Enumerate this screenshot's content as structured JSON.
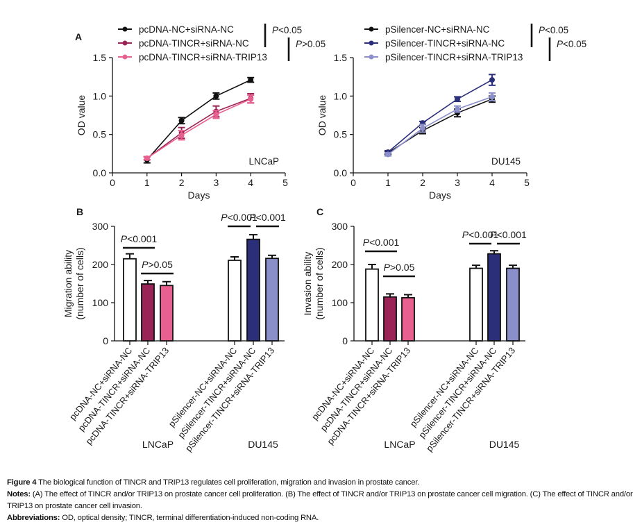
{
  "chart_data": [
    {
      "type": "line",
      "panel": "A",
      "title": "",
      "annotation": "LNCaP",
      "xlabel": "Days",
      "ylabel": "OD value",
      "xlim": [
        0,
        5
      ],
      "ylim": [
        0,
        1.5
      ],
      "xticks": [
        "0",
        "1",
        "2",
        "3",
        "4",
        "5"
      ],
      "yticks": [
        "0.0",
        "0.5",
        "1.0",
        "1.5"
      ],
      "x": [
        1,
        2,
        3,
        4
      ],
      "series": [
        {
          "name": "pcDNA-NC+siRNA-NC",
          "color": "#111111",
          "values": [
            0.17,
            0.68,
            1.0,
            1.21
          ],
          "errors": [
            0.04,
            0.04,
            0.04,
            0.03
          ]
        },
        {
          "name": "pcDNA-TINCR+siRNA-NC",
          "color": "#9b2457",
          "values": [
            0.19,
            0.52,
            0.8,
            0.97
          ],
          "errors": [
            0.02,
            0.07,
            0.07,
            0.06
          ]
        },
        {
          "name": "pcDNA-TINCR+siRNA-TRIP13",
          "color": "#e8608f",
          "values": [
            0.19,
            0.49,
            0.76,
            0.96
          ],
          "errors": [
            0.02,
            0.06,
            0.05,
            0.05
          ]
        }
      ],
      "significance": [
        {
          "label": "P<0.05",
          "between": "pcDNA-NC+siRNA-NC vs pcDNA-TINCR+siRNA-NC"
        },
        {
          "label": "P>0.05",
          "between": "pcDNA-TINCR+siRNA-NC vs pcDNA-TINCR+siRNA-TRIP13"
        }
      ],
      "legend": "top"
    },
    {
      "type": "line",
      "panel": "A",
      "title": "",
      "annotation": "DU145",
      "xlabel": "Days",
      "ylabel": "OD value",
      "xlim": [
        0,
        5
      ],
      "ylim": [
        0,
        1.5
      ],
      "xticks": [
        "0",
        "1",
        "2",
        "3",
        "4",
        "5"
      ],
      "yticks": [
        "0.0",
        "0.5",
        "1.0",
        "1.5"
      ],
      "x": [
        1,
        2,
        3,
        4
      ],
      "series": [
        {
          "name": "pSilencer-NC+siRNA-NC",
          "color": "#111111",
          "values": [
            0.26,
            0.55,
            0.78,
            0.96
          ],
          "errors": [
            0.02,
            0.04,
            0.05,
            0.04
          ]
        },
        {
          "name": "pSilencer-TINCR+siRNA-NC",
          "color": "#2b2f7a",
          "values": [
            0.27,
            0.65,
            0.96,
            1.21
          ],
          "errors": [
            0.02,
            0.02,
            0.03,
            0.07
          ]
        },
        {
          "name": "pSilencer-TINCR+siRNA-TRIP13",
          "color": "#8b8fc9",
          "values": [
            0.24,
            0.58,
            0.83,
            0.99
          ],
          "errors": [
            0.02,
            0.05,
            0.04,
            0.05
          ]
        }
      ],
      "significance": [
        {
          "label": "P<0.05",
          "between": "pSilencer-NC+siRNA-NC vs pSilencer-TINCR+siRNA-NC"
        },
        {
          "label": "P<0.05",
          "between": "pSilencer-TINCR+siRNA-NC vs pSilencer-TINCR+siRNA-TRIP13"
        }
      ],
      "legend": "top"
    },
    {
      "type": "bar",
      "panel": "B",
      "ylabel": "Migration ability",
      "ylabel2": "(number of cells)",
      "ylim": [
        0,
        300
      ],
      "yticks": [
        "0",
        "100",
        "200",
        "300"
      ],
      "groups": [
        "LNCaP",
        "DU145"
      ],
      "categories": [
        "pcDNA-NC+siRNA-NC",
        "pcDNA-TINCR+siRNA-NC",
        "pcDNA-TINCR+siRNA-TRIP13",
        "pSilencer-NC+siRNA-NC",
        "pSilencer-TINCR+siRNA-NC",
        "pSilencer-TINCR+siRNA-TRIP13"
      ],
      "values": [
        215,
        149,
        145,
        211,
        266,
        216
      ],
      "errors": [
        13,
        9,
        10,
        9,
        12,
        8
      ],
      "colors": [
        "#ffffff",
        "#9b2457",
        "#e8608f",
        "#ffffff",
        "#2b2f7a",
        "#8b8fc9"
      ],
      "significance": [
        {
          "label": "P<0.001",
          "from": 0,
          "to": 1
        },
        {
          "label": "P>0.05",
          "from": 1,
          "to": 2
        },
        {
          "label": "P<0.001",
          "from": 3,
          "to": 4
        },
        {
          "label": "P<0.001",
          "from": 4,
          "to": 5
        }
      ]
    },
    {
      "type": "bar",
      "panel": "C",
      "ylabel": "Invasion ability",
      "ylabel2": "(number of cells)",
      "ylim": [
        0,
        300
      ],
      "yticks": [
        "0",
        "100",
        "200",
        "300"
      ],
      "groups": [
        "LNCaP",
        "DU145"
      ],
      "categories": [
        "pcDNA-NC+siRNA-NC",
        "pcDNA-TINCR+siRNA-NC",
        "pcDNA-TINCR+siRNA-TRIP13",
        "pSilencer-NC+siRNA-NC",
        "pSilencer-TINCR+siRNA-NC",
        "pSilencer-TINCR+siRNA-TRIP13"
      ],
      "values": [
        188,
        115,
        113,
        190,
        228,
        190
      ],
      "errors": [
        12,
        8,
        8,
        8,
        8,
        8
      ],
      "colors": [
        "#ffffff",
        "#9b2457",
        "#e8608f",
        "#ffffff",
        "#2b2f7a",
        "#8b8fc9"
      ],
      "significance": [
        {
          "label": "P<0.001",
          "from": 0,
          "to": 1
        },
        {
          "label": "P>0.05",
          "from": 1,
          "to": 2
        },
        {
          "label": "P<0.001",
          "from": 3,
          "to": 4
        },
        {
          "label": "P<0.001",
          "from": 4,
          "to": 5
        }
      ]
    }
  ],
  "panel_labels": [
    "A",
    "B",
    "C"
  ],
  "caption": {
    "title_bold": "Figure 4",
    "title": " The biological function of TINCR and TRIP13 regulates cell proliferation, migration and invasion in prostate cancer.",
    "notes_bold": "Notes:",
    "notes": " (A) The effect of TINCR and/or TRIP13 on prostate cancer cell proliferation. (B) The effect of TINCR and/or TRIP13 on prostate cancer cell migration. (C) The effect of TINCR and/or TRIP13 on prostate cancer cell invasion.",
    "abbrev_bold": "Abbreviations:",
    "abbrev": " OD, optical density; TINCR, terminal differentiation-induced non-coding RNA."
  }
}
